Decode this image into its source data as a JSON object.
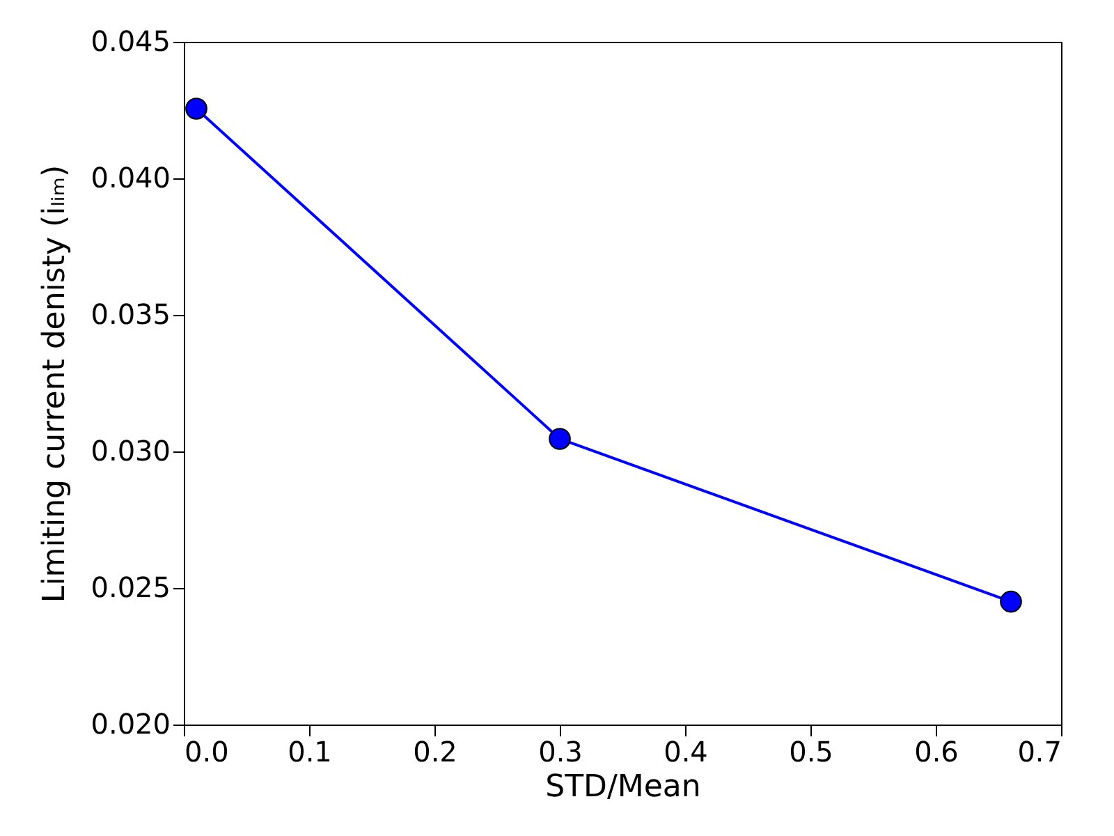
{
  "chart_data": {
    "type": "line",
    "xlabel": "STD/Mean",
    "ylabel": "Limiting current denisty (iₗᵢₘ)",
    "x": [
      0.01,
      0.3,
      0.66
    ],
    "series": [
      {
        "color": "#0000ff",
        "values": [
          0.04255,
          0.03046,
          0.0245
        ]
      }
    ],
    "xlim": [
      0.0,
      0.7
    ],
    "ylim": [
      0.02,
      0.045
    ],
    "xticks": [
      {
        "value": 0,
        "label": "0.0"
      },
      0.1,
      0.2,
      0.3,
      0.4,
      0.5,
      0.6,
      0.7
    ],
    "yticks": [
      {
        "value": 0.02,
        "label": "0.020"
      },
      0.025,
      {
        "value": 0.03,
        "label": "0.030"
      },
      0.035,
      {
        "value": 0.04,
        "label": "0.040"
      },
      0.045
    ],
    "marker": "circle",
    "line_style": "solid",
    "grid": false
  }
}
